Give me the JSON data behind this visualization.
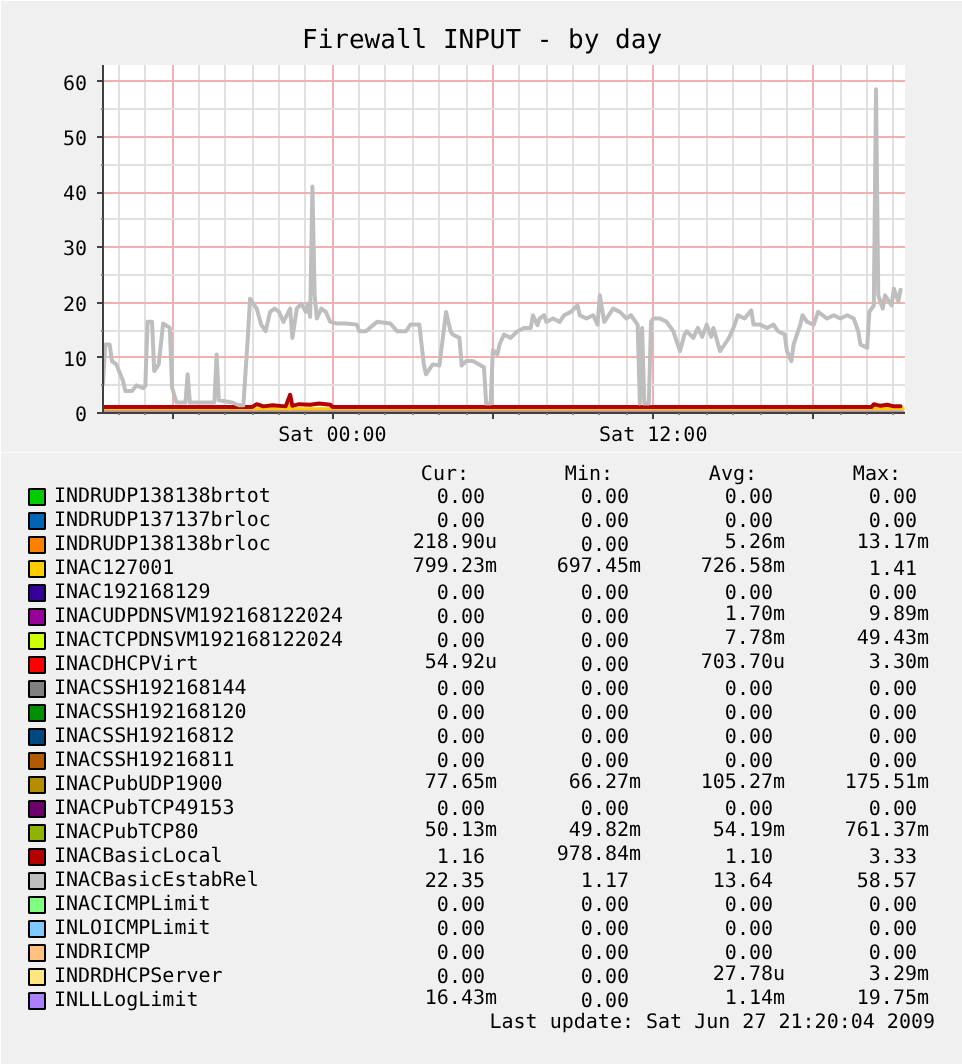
{
  "chart_data": {
    "type": "line",
    "title": "Firewall INPUT - by day",
    "xlim": [
      "2009-06-26T15:25",
      "2009-06-27T21:25"
    ],
    "ylim": [
      0,
      63
    ],
    "xticks": [
      {
        "value": "2009-06-26T18:00",
        "label": null
      },
      {
        "value": "2009-06-27T00:00",
        "label": "Sat 00:00"
      },
      {
        "value": "2009-06-27T06:00",
        "label": null
      },
      {
        "value": "2009-06-27T12:00",
        "label": "Sat 12:00"
      },
      {
        "value": "2009-06-27T18:00",
        "label": null
      }
    ],
    "yticks": [
      0,
      10,
      20,
      30,
      40,
      50,
      60
    ],
    "grid": true,
    "legend": "bottom",
    "series": [
      {
        "name": "INDRUDP138138brtot",
        "color": "#00cc00",
        "values": [
          null,
          null
        ]
      },
      {
        "name": "INDRUDP137137brloc",
        "color": "#0066b3",
        "values": [
          null,
          null
        ]
      },
      {
        "name": "INDRUDP138138brloc",
        "color": "#ff8000",
        "values": [
          null,
          null
        ]
      },
      {
        "name": "INAC127001",
        "color": "#ffcc00",
        "x": [
          "2009-06-26T15:25",
          "2009-06-26T22:20",
          "2009-06-26T22:25",
          "2009-06-26T22:30",
          "2009-06-27T21:20"
        ],
        "values": [
          0.7,
          0.7,
          1.4,
          0.7,
          0.8
        ]
      },
      {
        "name": "INAC192168129",
        "color": "#330099",
        "values": [
          null,
          null
        ]
      },
      {
        "name": "INACUDPDNSVM192168122024",
        "color": "#990099",
        "values": [
          null,
          null
        ]
      },
      {
        "name": "INACTCPDNSVM192168122024",
        "color": "#ccff00",
        "values": [
          null,
          null
        ]
      },
      {
        "name": "INACDHCPVirt",
        "color": "#ff0000",
        "values": [
          null,
          null
        ]
      },
      {
        "name": "INACSSH192168144",
        "color": "#808080",
        "values": [
          null,
          null
        ]
      },
      {
        "name": "INACSSH192168120",
        "color": "#008f00",
        "values": [
          null,
          null
        ]
      },
      {
        "name": "INACSSH19216812",
        "color": "#00487d",
        "values": [
          null,
          null
        ]
      },
      {
        "name": "INACSSH19216811",
        "color": "#b35a00",
        "values": [
          null,
          null
        ]
      },
      {
        "name": "INACPubUDP1900",
        "color": "#b38f00",
        "x": [
          "2009-06-26T15:25",
          "2009-06-27T21:20"
        ],
        "values": [
          0.1,
          0.1
        ]
      },
      {
        "name": "INACPubTCP49153",
        "color": "#6b006b",
        "values": [
          null,
          null
        ]
      },
      {
        "name": "INACPubTCP80",
        "color": "#8fb300",
        "values": [
          null,
          null
        ]
      },
      {
        "name": "INACBasicLocal",
        "color": "#b30000",
        "x": [
          "2009-06-26T15:25",
          "2009-06-26T21:00",
          "2009-06-26T21:10",
          "2009-06-26T21:25",
          "2009-06-26T21:45",
          "2009-06-26T22:15",
          "2009-06-26T22:25",
          "2009-06-26T22:30",
          "2009-06-26T22:45",
          "2009-06-26T23:10",
          "2009-06-26T23:30",
          "2009-06-26T23:55",
          "2009-06-27T00:00",
          "2009-06-27T20:10",
          "2009-06-27T20:15",
          "2009-06-27T20:30",
          "2009-06-27T20:45",
          "2009-06-27T21:00",
          "2009-06-27T21:15"
        ],
        "values": [
          1.1,
          1.1,
          1.6,
          1.2,
          1.4,
          1.2,
          3.3,
          1.3,
          1.6,
          1.5,
          1.7,
          1.5,
          1.1,
          1.1,
          1.6,
          1.3,
          1.5,
          1.2,
          1.2
        ]
      },
      {
        "name": "INACBasicEstabRel",
        "color": "#bebebe",
        "x": [
          "2009-06-26T15:25",
          "2009-06-26T15:30",
          "2009-06-26T15:40",
          "2009-06-26T15:45",
          "2009-06-26T15:55",
          "2009-06-26T16:10",
          "2009-06-26T16:15",
          "2009-06-26T16:30",
          "2009-06-26T16:40",
          "2009-06-26T16:55",
          "2009-06-26T17:00",
          "2009-06-26T17:05",
          "2009-06-26T17:15",
          "2009-06-26T17:20",
          "2009-06-26T17:30",
          "2009-06-26T17:40",
          "2009-06-26T17:55",
          "2009-06-26T18:00",
          "2009-06-26T18:10",
          "2009-06-26T18:30",
          "2009-06-26T18:35",
          "2009-06-26T18:40",
          "2009-06-26T19:35",
          "2009-06-26T19:40",
          "2009-06-26T19:45",
          "2009-06-26T20:15",
          "2009-06-26T20:30",
          "2009-06-26T20:40",
          "2009-06-26T20:50",
          "2009-06-26T20:55",
          "2009-06-26T21:05",
          "2009-06-26T21:10",
          "2009-06-26T21:20",
          "2009-06-26T21:30",
          "2009-06-26T21:40",
          "2009-06-26T21:50",
          "2009-06-26T22:00",
          "2009-06-26T22:10",
          "2009-06-26T22:25",
          "2009-06-26T22:30",
          "2009-06-26T22:40",
          "2009-06-26T22:50",
          "2009-06-26T23:00",
          "2009-06-26T23:05",
          "2009-06-26T23:10",
          "2009-06-26T23:15",
          "2009-06-26T23:20",
          "2009-06-26T23:25",
          "2009-06-26T23:35",
          "2009-06-26T23:45",
          "2009-06-26T23:55",
          "2009-06-27T00:10",
          "2009-06-27T00:30",
          "2009-06-27T00:55",
          "2009-06-27T01:00",
          "2009-06-27T01:15",
          "2009-06-27T01:40",
          "2009-06-27T02:10",
          "2009-06-27T02:25",
          "2009-06-27T02:45",
          "2009-06-27T02:55",
          "2009-06-27T03:15",
          "2009-06-27T03:25",
          "2009-06-27T03:30",
          "2009-06-27T03:45",
          "2009-06-27T04:00",
          "2009-06-27T04:15",
          "2009-06-27T04:25",
          "2009-06-27T04:30",
          "2009-06-27T04:45",
          "2009-06-27T04:50",
          "2009-06-27T05:00",
          "2009-06-27T05:15",
          "2009-06-27T05:40",
          "2009-06-27T05:45",
          "2009-06-27T05:55",
          "2009-06-27T06:00",
          "2009-06-27T06:10",
          "2009-06-27T06:15",
          "2009-06-27T06:25",
          "2009-06-27T06:40",
          "2009-06-27T06:55",
          "2009-06-27T07:10",
          "2009-06-27T07:25",
          "2009-06-27T07:30",
          "2009-06-27T07:40",
          "2009-06-27T07:45",
          "2009-06-27T07:55",
          "2009-06-27T08:00",
          "2009-06-27T08:15",
          "2009-06-27T08:30",
          "2009-06-27T08:40",
          "2009-06-27T08:55",
          "2009-06-27T09:10",
          "2009-06-27T09:15",
          "2009-06-27T09:30",
          "2009-06-27T09:45",
          "2009-06-27T09:55",
          "2009-06-27T10:00",
          "2009-06-27T10:10",
          "2009-06-27T10:15",
          "2009-06-27T10:25",
          "2009-06-27T10:30",
          "2009-06-27T10:45",
          "2009-06-27T11:00",
          "2009-06-27T11:10",
          "2009-06-27T11:15",
          "2009-06-27T11:25",
          "2009-06-27T11:30",
          "2009-06-27T11:35",
          "2009-06-27T11:40",
          "2009-06-27T11:50",
          "2009-06-27T11:55",
          "2009-06-27T12:00",
          "2009-06-27T12:15",
          "2009-06-27T12:30",
          "2009-06-27T12:45",
          "2009-06-27T13:00",
          "2009-06-27T13:10",
          "2009-06-27T13:15",
          "2009-06-27T13:30",
          "2009-06-27T13:40",
          "2009-06-27T13:50",
          "2009-06-27T14:00",
          "2009-06-27T14:10",
          "2009-06-27T14:15",
          "2009-06-27T14:30",
          "2009-06-27T14:40",
          "2009-06-27T14:50",
          "2009-06-27T15:00",
          "2009-06-27T15:10",
          "2009-06-27T15:25",
          "2009-06-27T15:40",
          "2009-06-27T15:45",
          "2009-06-27T16:00",
          "2009-06-27T16:15",
          "2009-06-27T16:30",
          "2009-06-27T16:40",
          "2009-06-27T16:55",
          "2009-06-27T17:00",
          "2009-06-27T17:10",
          "2009-06-27T17:15",
          "2009-06-27T17:30",
          "2009-06-27T17:35",
          "2009-06-27T17:45",
          "2009-06-27T18:00",
          "2009-06-27T18:10",
          "2009-06-27T18:20",
          "2009-06-27T18:30",
          "2009-06-27T18:45",
          "2009-06-27T19:00",
          "2009-06-27T19:15",
          "2009-06-27T19:30",
          "2009-06-27T19:40",
          "2009-06-27T19:45",
          "2009-06-27T20:00",
          "2009-06-27T20:05",
          "2009-06-27T20:15",
          "2009-06-27T20:20",
          "2009-06-27T20:25",
          "2009-06-27T20:35",
          "2009-06-27T20:40",
          "2009-06-27T20:55",
          "2009-06-27T21:00",
          "2009-06-27T21:10",
          "2009-06-27T21:15"
        ],
        "values": [
          5.2,
          12.4,
          12.4,
          9.4,
          8.8,
          5.8,
          4.0,
          4.0,
          5.0,
          4.5,
          4.9,
          16.5,
          16.5,
          7.6,
          8.8,
          16.2,
          15.4,
          4.6,
          1.9,
          1.9,
          7.0,
          1.9,
          1.9,
          10.6,
          2.3,
          1.9,
          1.4,
          1.4,
          13.6,
          20.7,
          19.5,
          18.9,
          16.0,
          14.8,
          18.3,
          18.9,
          18.3,
          16.5,
          18.9,
          13.6,
          18.9,
          19.8,
          18.3,
          19.8,
          17.4,
          41.0,
          21.3,
          17.1,
          18.9,
          18.3,
          16.5,
          16.2,
          16.2,
          16.0,
          14.8,
          14.8,
          16.5,
          16.2,
          14.8,
          14.8,
          16.0,
          16.0,
          8.8,
          7.0,
          8.8,
          8.6,
          18.3,
          14.8,
          14.2,
          13.6,
          8.6,
          9.4,
          9.4,
          8.3,
          1.7,
          1.7,
          11.4,
          10.6,
          12.4,
          14.2,
          13.6,
          14.8,
          15.4,
          15.4,
          17.7,
          15.9,
          17.1,
          17.7,
          16.5,
          17.1,
          16.5,
          17.7,
          18.3,
          19.5,
          17.7,
          17.1,
          17.7,
          16.0,
          21.3,
          16.5,
          17.1,
          18.3,
          18.9,
          18.3,
          17.1,
          17.7,
          17.1,
          16.0,
          1.7,
          15.4,
          1.7,
          1.7,
          16.5,
          17.1,
          17.1,
          16.5,
          14.8,
          11.2,
          14.2,
          14.8,
          13.6,
          15.4,
          13.8,
          16.0,
          13.8,
          15.4,
          11.2,
          12.4,
          13.6,
          15.4,
          17.7,
          17.1,
          18.6,
          16.0,
          16.0,
          15.4,
          16.0,
          14.8,
          14.2,
          11.2,
          9.4,
          12.4,
          16.0,
          17.7,
          16.5,
          16.0,
          18.3,
          17.7,
          17.1,
          17.7,
          17.1,
          17.7,
          17.1,
          14.8,
          12.4,
          11.8,
          18.3,
          19.5,
          58.6,
          21.3,
          18.9,
          21.3,
          19.5,
          22.5,
          20.2,
          22.3
        ]
      },
      {
        "name": "INACICMPLimit",
        "color": "#80ff80",
        "values": [
          null,
          null
        ]
      },
      {
        "name": "INLOICMPLimit",
        "color": "#80c9ff",
        "values": [
          null,
          null
        ]
      },
      {
        "name": "INDRICMP",
        "color": "#ffc080",
        "values": [
          null,
          null
        ]
      },
      {
        "name": "INDRDHCPServer",
        "color": "#ffe680",
        "values": [
          null,
          null
        ]
      },
      {
        "name": "INLLLogLimit",
        "color": "#aa80ff",
        "x": [
          "2009-06-26T15:25",
          "2009-06-27T21:20"
        ],
        "values": [
          0,
          0
        ]
      }
    ],
    "annotations": [
      "Cur:",
      "Min:",
      "Avg:",
      "Max:",
      "0.00",
      "0.00",
      "0.00",
      "0.00",
      "0.00",
      "0.00",
      "0.00",
      "0.00",
      "218.90u",
      "0.00",
      "5.26m",
      "13.17m",
      "799.23m",
      "697.45m",
      "726.58m",
      "1.41",
      "0.00",
      "0.00",
      "0.00",
      "0.00",
      "0.00",
      "0.00",
      "1.70m",
      "9.89m",
      "0.00",
      "0.00",
      "7.78m",
      "49.43m",
      "54.92u",
      "0.00",
      "703.70u",
      "3.30m",
      "0.00",
      "0.00",
      "0.00",
      "0.00",
      "0.00",
      "0.00",
      "0.00",
      "0.00",
      "0.00",
      "0.00",
      "0.00",
      "0.00",
      "0.00",
      "0.00",
      "0.00",
      "0.00",
      "77.65m",
      "66.27m",
      "105.27m",
      "175.51m",
      "0.00",
      "0.00",
      "0.00",
      "0.00",
      "50.13m",
      "49.82m",
      "54.19m",
      "761.37m",
      "1.16",
      "978.84m",
      "1.10",
      "3.33",
      "22.35",
      "1.17",
      "13.64",
      "58.57",
      "0.00",
      "0.00",
      "0.00",
      "0.00",
      "0.00",
      "0.00",
      "0.00",
      "0.00",
      "0.00",
      "0.00",
      "0.00",
      "0.00",
      "0.00",
      "0.00",
      "27.78u",
      "3.29m",
      "16.43m",
      "0.00",
      "1.14m",
      "19.75m",
      "Last update: Sat Jun 27 21:20:04 2009"
    ]
  }
}
